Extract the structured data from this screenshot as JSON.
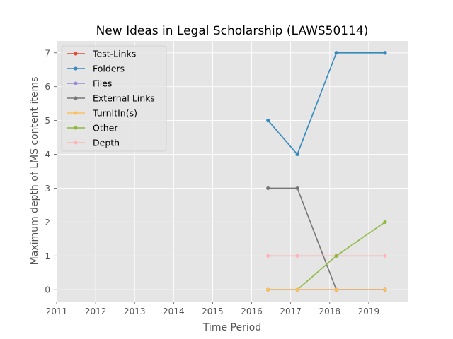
{
  "chart_data": {
    "type": "line",
    "title": "New Ideas in Legal Scholarship (LAWS50114)",
    "xlabel": "Time Period",
    "ylabel": "Maximum depth of LMS content items",
    "xlim": [
      2011,
      2020
    ],
    "ylim": [
      -0.35,
      7.35
    ],
    "xticks": [
      2011,
      2012,
      2013,
      2014,
      2015,
      2016,
      2017,
      2018,
      2019
    ],
    "yticks": [
      0,
      1,
      2,
      3,
      4,
      5,
      6,
      7
    ],
    "grid": true,
    "legend_position": "upper-left",
    "x": [
      2016.42,
      2017.17,
      2018.17,
      2019.42
    ],
    "series": [
      {
        "name": "Test-Links",
        "color": "#E24A33",
        "values": [
          0,
          0,
          0,
          0
        ]
      },
      {
        "name": "Folders",
        "color": "#348ABD",
        "values": [
          5,
          4,
          7,
          7
        ]
      },
      {
        "name": "Files",
        "color": "#988ED5",
        "values": [
          0,
          0,
          0,
          0
        ]
      },
      {
        "name": "External Links",
        "color": "#777777",
        "values": [
          3,
          3,
          0,
          0
        ]
      },
      {
        "name": "TurnItIn(s)",
        "color": "#FBC15E",
        "values": [
          0,
          0,
          0,
          0
        ]
      },
      {
        "name": "Other",
        "color": "#8EBA42",
        "values": [
          0,
          0,
          1,
          2
        ]
      },
      {
        "name": "Depth",
        "color": "#FFB5B8",
        "values": [
          1,
          1,
          1,
          1
        ]
      }
    ]
  }
}
